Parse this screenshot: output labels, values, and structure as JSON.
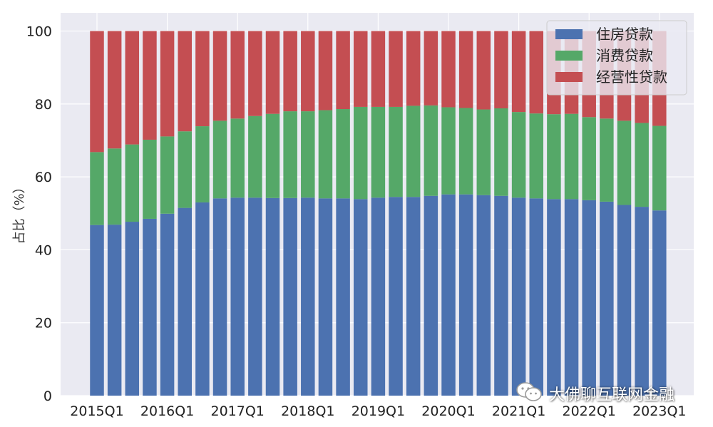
{
  "chart_data": {
    "type": "bar",
    "stacked": true,
    "title": "",
    "xlabel": "",
    "ylabel": "占比（%）",
    "ylim": [
      0,
      105
    ],
    "yticks": [
      0,
      20,
      40,
      60,
      80,
      100
    ],
    "grid": true,
    "legend_position": "top-right",
    "categories": [
      "2015Q1",
      "2015Q2",
      "2015Q3",
      "2015Q4",
      "2016Q1",
      "2016Q2",
      "2016Q3",
      "2016Q4",
      "2017Q1",
      "2017Q2",
      "2017Q3",
      "2017Q4",
      "2018Q1",
      "2018Q2",
      "2018Q3",
      "2018Q4",
      "2019Q1",
      "2019Q2",
      "2019Q3",
      "2019Q4",
      "2020Q1",
      "2020Q2",
      "2020Q3",
      "2020Q4",
      "2021Q1",
      "2021Q2",
      "2021Q3",
      "2021Q4",
      "2022Q1",
      "2022Q2",
      "2022Q3",
      "2022Q4",
      "2023Q1"
    ],
    "x_tick_labels": [
      "2015Q1",
      "2016Q1",
      "2017Q1",
      "2018Q1",
      "2019Q1",
      "2020Q1",
      "2021Q1",
      "2022Q1",
      "2023Q1"
    ],
    "series": [
      {
        "name": "住房贷款",
        "color": "#4c72b0",
        "values": [
          46.8,
          46.9,
          47.7,
          48.5,
          49.9,
          51.5,
          53.0,
          54.1,
          54.3,
          54.3,
          54.2,
          54.2,
          54.3,
          54.1,
          54.1,
          53.9,
          54.3,
          54.5,
          54.5,
          54.8,
          55.2,
          55.2,
          55.0,
          54.8,
          54.3,
          54.1,
          53.9,
          53.9,
          53.6,
          53.2,
          52.3,
          51.8,
          50.8
        ]
      },
      {
        "name": "消费贷款",
        "color": "#55a868",
        "values": [
          20.0,
          20.9,
          21.2,
          21.7,
          21.2,
          21.0,
          20.9,
          21.3,
          21.7,
          22.4,
          23.1,
          23.8,
          23.7,
          24.2,
          24.5,
          25.3,
          24.9,
          24.7,
          25.0,
          24.8,
          23.9,
          23.7,
          23.5,
          24.0,
          23.5,
          23.3,
          23.3,
          23.4,
          22.8,
          22.8,
          23.1,
          23.0,
          23.2
        ]
      },
      {
        "name": "经营性贷款",
        "color": "#c44e52",
        "values": [
          33.2,
          32.2,
          31.1,
          29.8,
          28.9,
          27.5,
          26.1,
          24.6,
          24.0,
          23.3,
          22.7,
          22.0,
          22.0,
          21.7,
          21.4,
          20.8,
          20.8,
          20.8,
          20.5,
          20.4,
          20.9,
          21.1,
          21.5,
          21.2,
          22.2,
          22.6,
          22.8,
          22.7,
          23.6,
          24.0,
          24.6,
          25.2,
          26.0
        ]
      }
    ]
  },
  "watermark": {
    "text": "大佛聊互联网金融",
    "icon": "wechat-icon"
  }
}
